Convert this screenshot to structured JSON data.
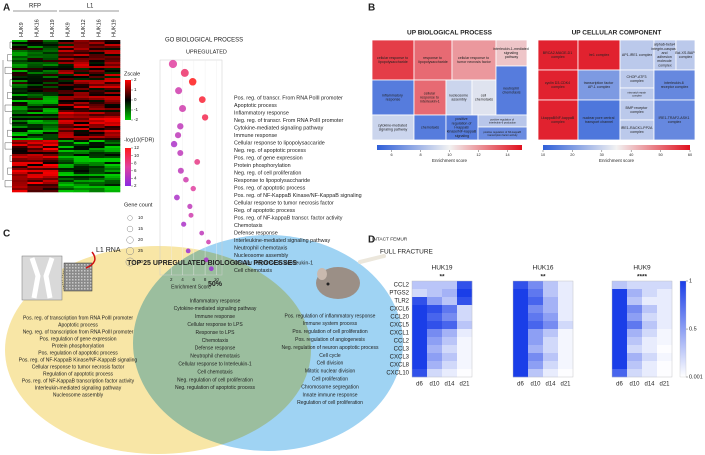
{
  "panel_labels": [
    "A",
    "B",
    "C",
    "D"
  ],
  "panel_a": {
    "groups": [
      "RFP",
      "L1"
    ],
    "columns": [
      "HUK9",
      "HUK16",
      "HUK19",
      "HUK9",
      "HUK12",
      "HUK16",
      "HUK19"
    ],
    "zscale": {
      "label": "Zscale",
      "zlim": [
        -2,
        2
      ],
      "ticks": [
        2,
        1,
        0,
        -1,
        -2
      ],
      "colors": [
        "#00cc00",
        "#000000",
        "#ff0000"
      ]
    }
  },
  "panel_b": {
    "treemaps": [
      {
        "title": "UP BIOLOGICAL PROCESS",
        "axis_label": "Enrichment score",
        "range": [
          5,
          15
        ],
        "ticks": [
          6,
          8,
          10,
          12,
          14
        ],
        "colors": [
          "#2f5fd8",
          "#f2f2f2",
          "#e0101e"
        ],
        "boxes": [
          {
            "label": "cellular response to lipopolysaccharide",
            "value": 14
          },
          {
            "label": "response to lipopolysaccharide",
            "value": 13
          },
          {
            "label": "cellular response to tumor necrosis factor",
            "value": 12
          },
          {
            "label": "interleukin-1-mediated signaling pathway",
            "value": 11
          },
          {
            "label": "inflammatory response",
            "value": 6
          },
          {
            "label": "cellular response to interleukin-1",
            "value": 13
          },
          {
            "label": "nucleosome assembly",
            "value": 9
          },
          {
            "label": "cell chemotaxis",
            "value": 9.5
          },
          {
            "label": "neutrophil chemotaxis",
            "value": 6
          },
          {
            "label": "cytokine-mediated signaling pathway",
            "value": 9
          },
          {
            "label": "chemotaxis",
            "value": 6
          },
          {
            "label": "positive regulation of I-kappaB kinase/NF-kappaB signaling",
            "value": 6
          },
          {
            "label": "positive regulation of interleukin-6 production",
            "value": 8.5
          },
          {
            "label": "positive regulation of NF-kappaB transcription factor activity",
            "value": 6.5
          }
        ]
      },
      {
        "title": "UP CELLULAR COMPONENT",
        "axis_label": "Enrichment score",
        "range": [
          10,
          60
        ],
        "ticks": [
          10,
          20,
          30,
          40,
          50,
          60
        ],
        "colors": [
          "#2f5fd8",
          "#f2f2f2",
          "#e0101e"
        ],
        "boxes": [
          {
            "label": "BRCA2-MAGE-D1 complex",
            "value": 58
          },
          {
            "label": "Ire1 complex",
            "value": 58
          },
          {
            "label": "AP1-IRE1 complex",
            "value": 28
          },
          {
            "label": "alpha6-beta4 integrin-caspase and adhesion molecule complex",
            "value": 28
          },
          {
            "label": "Bcl-XS-BAP complex",
            "value": 28
          },
          {
            "label": "cyclin D3-CDK4 complex",
            "value": 58
          },
          {
            "label": "transcription factor AP-1 complex",
            "value": 20
          },
          {
            "label": "CHOP-ATF3 complex",
            "value": 28
          },
          {
            "label": "mismatch repair complex",
            "value": 28
          },
          {
            "label": "interleukin-6 receptor complex",
            "value": 17
          },
          {
            "label": "I-kappaB/NF-kappaB complex",
            "value": 58
          },
          {
            "label": "nuclear pore central transport channel",
            "value": 14
          },
          {
            "label": "BMP receptor complex",
            "value": 28
          },
          {
            "label": "IRE1-RACK1-PP2A complex",
            "value": 28
          },
          {
            "label": "IRE1-TRAF2-ASK1 complex",
            "value": 17
          }
        ]
      }
    ]
  },
  "panel_c": {
    "title": "TOP 25 UPREGULATED BIOLOGICAL PROCESSES",
    "l1_label": "L1 RNA",
    "intact_label": "INTACT FEMUR",
    "fracture_label": "FULL FRACTURE",
    "overlap": "50%",
    "left": [
      "Pos. reg. of transcription from RNA PolII promoter",
      "Apoptotic process",
      "Neg. reg. of transcription from RNA PolII promoter",
      "Pos. regulation of gene expression",
      "Protein phosphorylation",
      "Pos. regulation of apoptotic process",
      "Pos. reg. of NF-KappaB Kinase/NF-KappaB signaling",
      "Cellular response to tumor necrosis factor",
      "Regulation of apoptotic process",
      "Pos. reg. of NF-KappaB transcription factor activity",
      "Interleukin-mediated signaling pathway",
      "Nucleosome assembly"
    ],
    "middle": [
      "Inflammatory response",
      "Cytokine-mediated signaling pathway",
      "Immune response",
      "Cellular response to LPS",
      "Response to LPS",
      "Chemotaxis",
      "Defense response",
      "Neutrophil chemotaxis",
      "Cellular response to Interleukin-1",
      "Cell chemotaxis",
      "Neg. regulation of cell proliferation",
      "Neg. regulation of apoptotic process"
    ],
    "right": [
      "Pos. regulation of inflammatory response",
      "Immune system process",
      "Pos. regulation of cell proliferation",
      "Pos. regulation of angiogenesis",
      "Neg. regulation of neuron apoptotic process",
      "Cell cycle",
      "Cell division",
      "Mitotic nuclear division",
      "Cell proliferation",
      "Chromosome segregation",
      "Innate immune response",
      "Regulation of cell proliferation"
    ]
  },
  "chart_data": [
    {
      "type": "scatter",
      "title": "GO BIOLOGICAL PROCESS",
      "subtitle": "UPREGULATED",
      "xlabel": "Enrichment Score",
      "categories": [
        "Pos. reg. of transcr. From RNA PolII promoter",
        "Apoptotic process",
        "Inflammatory response",
        "Neg. reg. of transcr. From RNA PolII promoter",
        "Cytokine-mediated signaling pathway",
        "Immune response",
        "Cellular response to lipopolysaccaride",
        "Neg. reg. of apoptotic process",
        "Pos. reg. of gene expression",
        "Protein phosphorylation",
        "Neg. reg. of cell proliferation",
        "Response to lipopolysaccharide",
        "Pos. reg. of apoptotic process",
        "Pos. reg. of NF-KappaB Kinase/NF-KappaB signaling",
        "Cellular response to tumor necrosis factor",
        "Reg. of apoptotic process",
        "Pos. reg. of NF-kappaB transcr. factor activity",
        "Chemotaxis",
        "Defense response",
        "Interleukine-mediated signaling pathway",
        "Neutrophil chemotaxis",
        "Nucleosome assembly",
        "Cellular response to Interleukin-1",
        "Cell chemotaxis"
      ],
      "values": [
        2.3,
        4.4,
        5.8,
        3.3,
        7.5,
        4.0,
        8.0,
        3.6,
        3.2,
        2.5,
        3.6,
        6.6,
        3.7,
        4.6,
        5.9,
        3.0,
        5.3,
        5.5,
        4.2,
        7.4,
        8.6,
        5.0,
        8.2,
        9.1
      ],
      "fdr": [
        7,
        9,
        12,
        6,
        11,
        6,
        10,
        5,
        5,
        4,
        5,
        8,
        5,
        6,
        7,
        4,
        5,
        6,
        4,
        5,
        6,
        3,
        4,
        3
      ],
      "gene_count": [
        30,
        28,
        25,
        22,
        20,
        22,
        18,
        18,
        17,
        18,
        16,
        15,
        16,
        14,
        13,
        15,
        12,
        11,
        12,
        10,
        10,
        10,
        10,
        10
      ],
      "xlim": [
        0,
        11
      ],
      "xticks": [
        2,
        4,
        6,
        8,
        10
      ],
      "color_label": "-log10(FDR)",
      "clim": [
        2,
        12
      ],
      "cticks": [
        12,
        10,
        8,
        6,
        4,
        2
      ],
      "colors": [
        "#8a2be2",
        "#e040a0",
        "#ff1a1a"
      ],
      "size_label": "Gene count",
      "size_ticks": [
        10,
        15,
        20,
        25,
        30
      ]
    },
    {
      "type": "heatmap",
      "title": "HUK19",
      "significance": "**",
      "x": [
        "d6",
        "d10",
        "d14",
        "d21"
      ],
      "rows": [
        "CCL2",
        "PTGS2",
        "TLR2",
        "CXCL6",
        "CCL20",
        "CXCL5",
        "CXCL1",
        "CCL2",
        "CCL3",
        "CXCL3",
        "CXCL8",
        "CXCL10"
      ],
      "values": [
        [
          0.3,
          0.3,
          0.3,
          0.9
        ],
        [
          0.2,
          0.3,
          0.4,
          1
        ],
        [
          0.9,
          0.5,
          0.3,
          0.9
        ],
        [
          1,
          0.9,
          0.7,
          0.2
        ],
        [
          1,
          0.8,
          0.6,
          0.2
        ],
        [
          1,
          0.9,
          0.8,
          0.3
        ],
        [
          1,
          0.6,
          0.4,
          0.1
        ],
        [
          1,
          0.5,
          0.3,
          0.05
        ],
        [
          1,
          0.4,
          0.2,
          0.05
        ],
        [
          1,
          0.5,
          0.3,
          0.05
        ],
        [
          1,
          0.4,
          0.2,
          0.05
        ],
        [
          0.9,
          0.2,
          0.1,
          0.01
        ]
      ],
      "clim": [
        0.001,
        1
      ],
      "cticks": [
        1,
        0.5,
        0.001
      ],
      "colors": [
        "#ffffff",
        "#1a3ee8"
      ]
    },
    {
      "type": "heatmap",
      "title": "HUK16",
      "significance": "**",
      "x": [
        "d6",
        "d10",
        "d14",
        "d21"
      ],
      "values": [
        [
          0.9,
          0.6,
          0.3,
          0.1
        ],
        [
          1,
          0.7,
          0.3,
          0.1
        ],
        [
          1,
          0.8,
          0.4,
          0.1
        ],
        [
          1,
          0.6,
          0.4,
          0.1
        ],
        [
          1,
          0.7,
          0.5,
          0.1
        ],
        [
          1,
          0.8,
          0.6,
          0.2
        ],
        [
          1,
          0.5,
          0.3,
          0.05
        ],
        [
          1,
          0.5,
          0.2,
          0.05
        ],
        [
          1,
          0.4,
          0.2,
          0.05
        ],
        [
          1,
          0.6,
          0.3,
          0.05
        ],
        [
          1,
          0.5,
          0.2,
          0.05
        ],
        [
          1,
          0.3,
          0.1,
          0.01
        ]
      ],
      "clim": [
        0.001,
        1
      ],
      "colors": [
        "#ffffff",
        "#1a3ee8"
      ]
    },
    {
      "type": "heatmap",
      "title": "HUK9",
      "significance": "****",
      "x": [
        "d6",
        "d10",
        "d14",
        "d21"
      ],
      "values": [
        [
          0.3,
          0.2,
          0.2,
          0.2
        ],
        [
          1,
          0.4,
          0.2,
          0.1
        ],
        [
          1,
          0.3,
          0.1,
          0.1
        ],
        [
          1,
          0.6,
          0.3,
          0.1
        ],
        [
          1,
          0.5,
          0.2,
          0.1
        ],
        [
          1,
          0.7,
          0.3,
          0.1
        ],
        [
          1,
          0.4,
          0.2,
          0.05
        ],
        [
          1,
          0.3,
          0.1,
          0.05
        ],
        [
          1,
          0.2,
          0.1,
          0.01
        ],
        [
          1,
          0.4,
          0.2,
          0.05
        ],
        [
          1,
          0.3,
          0.1,
          0.01
        ],
        [
          0.8,
          0.2,
          0.1,
          0.01
        ]
      ],
      "clim": [
        0.001,
        1
      ],
      "colors": [
        "#ffffff",
        "#1a3ee8"
      ]
    }
  ]
}
